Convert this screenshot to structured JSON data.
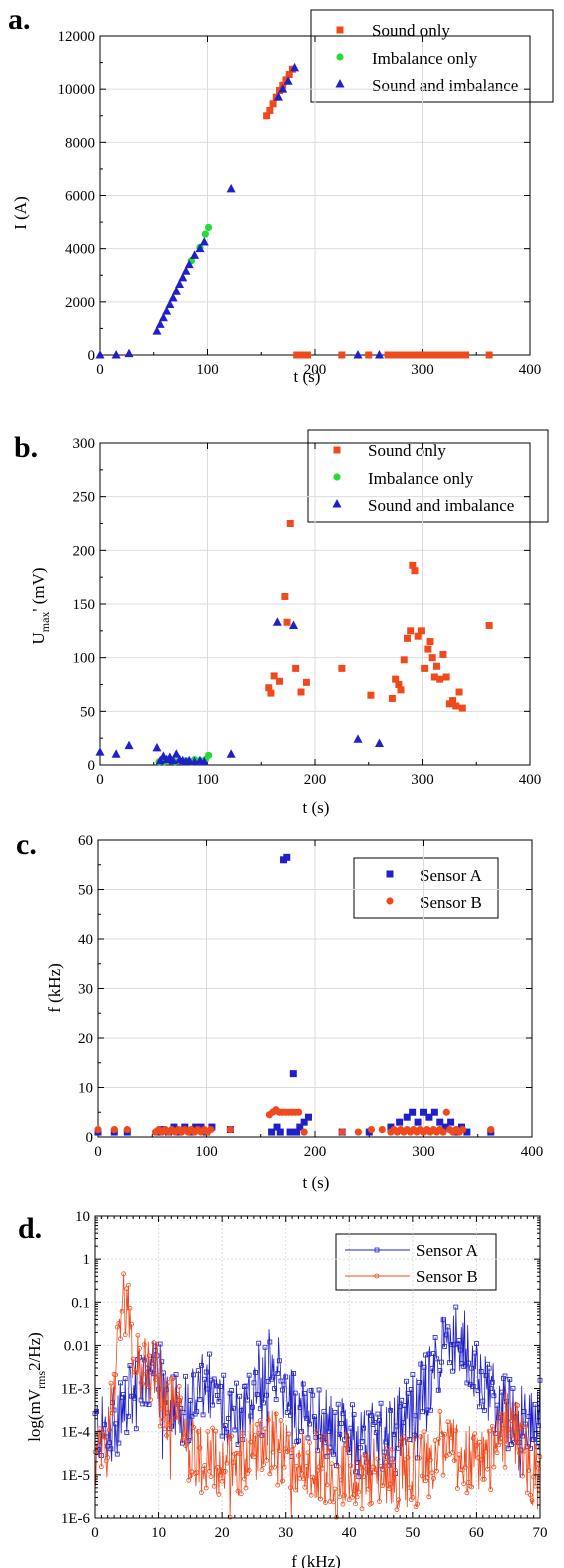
{
  "colors": {
    "orange": "#f04a1c",
    "green": "#22dd33",
    "blue": "#2020c8",
    "grid": "#dcdcdc"
  },
  "chart_data": [
    {
      "id": "a",
      "type": "scatter",
      "panel_label": "a.",
      "xlabel": "t (s)",
      "ylabel": "I (A)",
      "xlim": [
        0,
        400
      ],
      "ylim": [
        0,
        12000
      ],
      "xticks": [
        0,
        100,
        200,
        300,
        400
      ],
      "yticks": [
        0,
        2000,
        4000,
        6000,
        8000,
        10000,
        12000
      ],
      "grid": true,
      "legend_position": "top-right",
      "series": [
        {
          "name": "Sound only",
          "marker": "square",
          "color": "#f04a1c",
          "points": [
            [
              155,
              9000
            ],
            [
              158,
              9200
            ],
            [
              161,
              9450
            ],
            [
              164,
              9700
            ],
            [
              167,
              9950
            ],
            [
              170,
              10150
            ],
            [
              173,
              10350
            ],
            [
              176,
              10550
            ],
            [
              179,
              10750
            ],
            [
              183,
              0
            ],
            [
              186,
              0
            ],
            [
              189,
              0
            ],
            [
              193,
              0
            ],
            [
              225,
              0
            ],
            [
              250,
              0
            ],
            [
              268,
              0
            ],
            [
              272,
              0
            ],
            [
              276,
              0
            ],
            [
              280,
              0
            ],
            [
              284,
              0
            ],
            [
              288,
              0
            ],
            [
              292,
              0
            ],
            [
              296,
              0
            ],
            [
              300,
              0
            ],
            [
              304,
              0
            ],
            [
              308,
              0
            ],
            [
              312,
              0
            ],
            [
              316,
              0
            ],
            [
              320,
              0
            ],
            [
              324,
              0
            ],
            [
              328,
              0
            ],
            [
              332,
              0
            ],
            [
              336,
              0
            ],
            [
              340,
              0
            ],
            [
              362,
              0
            ]
          ]
        },
        {
          "name": "Imbalance only",
          "marker": "circle",
          "color": "#22dd33",
          "points": [
            [
              85,
              3550
            ],
            [
              93,
              4050
            ],
            [
              98,
              4550
            ],
            [
              101,
              4800
            ]
          ]
        },
        {
          "name": "Sound and imbalance",
          "marker": "triangle",
          "color": "#2020c8",
          "points": [
            [
              0,
              0
            ],
            [
              15,
              0
            ],
            [
              27,
              50
            ],
            [
              53,
              900
            ],
            [
              56,
              1150
            ],
            [
              59,
              1400
            ],
            [
              62,
              1650
            ],
            [
              65,
              1900
            ],
            [
              68,
              2150
            ],
            [
              71,
              2400
            ],
            [
              74,
              2650
            ],
            [
              77,
              2900
            ],
            [
              80,
              3150
            ],
            [
              83,
              3400
            ],
            [
              88,
              3750
            ],
            [
              93,
              4000
            ],
            [
              97,
              4250
            ],
            [
              122,
              6250
            ],
            [
              166,
              9700
            ],
            [
              170,
              10000
            ],
            [
              175,
              10300
            ],
            [
              181,
              10800
            ],
            [
              240,
              0
            ],
            [
              260,
              0
            ]
          ]
        }
      ]
    },
    {
      "id": "b",
      "type": "scatter",
      "panel_label": "b.",
      "xlabel": "t (s)",
      "ylabel_main": "U",
      "ylabel_sub": "max",
      "ylabel_rest": "' (mV)",
      "xlim": [
        0,
        400
      ],
      "ylim": [
        0,
        300
      ],
      "xticks": [
        0,
        100,
        200,
        300,
        400
      ],
      "yticks": [
        0,
        50,
        100,
        150,
        200,
        250,
        300
      ],
      "grid": true,
      "legend_position": "top-right",
      "series": [
        {
          "name": "Sound only",
          "marker": "square",
          "color": "#f04a1c",
          "points": [
            [
              157,
              72
            ],
            [
              159,
              67
            ],
            [
              162,
              83
            ],
            [
              167,
              78
            ],
            [
              172,
              157
            ],
            [
              174,
              133
            ],
            [
              177,
              225
            ],
            [
              182,
              90
            ],
            [
              187,
              68
            ],
            [
              192,
              77
            ],
            [
              225,
              90
            ],
            [
              252,
              65
            ],
            [
              272,
              62
            ],
            [
              275,
              80
            ],
            [
              278,
              75
            ],
            [
              280,
              70
            ],
            [
              283,
              98
            ],
            [
              286,
              118
            ],
            [
              289,
              125
            ],
            [
              291,
              186
            ],
            [
              293,
              181
            ],
            [
              296,
              120
            ],
            [
              299,
              125
            ],
            [
              302,
              90
            ],
            [
              305,
              108
            ],
            [
              307,
              115
            ],
            [
              309,
              100
            ],
            [
              311,
              82
            ],
            [
              313,
              92
            ],
            [
              316,
              80
            ],
            [
              319,
              103
            ],
            [
              322,
              82
            ],
            [
              325,
              57
            ],
            [
              328,
              60
            ],
            [
              331,
              55
            ],
            [
              334,
              68
            ],
            [
              337,
              53
            ],
            [
              362,
              130
            ]
          ]
        },
        {
          "name": "Imbalance only",
          "marker": "circle",
          "color": "#22dd33",
          "points": [
            [
              55,
              3
            ],
            [
              60,
              3
            ],
            [
              65,
              4
            ],
            [
              70,
              3
            ],
            [
              80,
              4
            ],
            [
              85,
              3
            ],
            [
              88,
              5
            ],
            [
              93,
              4
            ],
            [
              98,
              5
            ],
            [
              101,
              9
            ]
          ]
        },
        {
          "name": "Sound and imbalance",
          "marker": "triangle",
          "color": "#2020c8",
          "points": [
            [
              0,
              12
            ],
            [
              15,
              10
            ],
            [
              27,
              18
            ],
            [
              53,
              16
            ],
            [
              56,
              4
            ],
            [
              59,
              8
            ],
            [
              62,
              5
            ],
            [
              65,
              7
            ],
            [
              68,
              4
            ],
            [
              71,
              10
            ],
            [
              74,
              5
            ],
            [
              77,
              4
            ],
            [
              80,
              3
            ],
            [
              83,
              4
            ],
            [
              88,
              3
            ],
            [
              93,
              4
            ],
            [
              97,
              3
            ],
            [
              122,
              10
            ],
            [
              165,
              133
            ],
            [
              180,
              130
            ],
            [
              240,
              24
            ],
            [
              260,
              20
            ]
          ]
        }
      ]
    },
    {
      "id": "c",
      "type": "scatter",
      "panel_label": "c.",
      "xlabel": "t (s)",
      "ylabel": "f (kHz)",
      "xlim": [
        0,
        400
      ],
      "ylim": [
        0,
        60
      ],
      "xticks": [
        0,
        100,
        200,
        300,
        400
      ],
      "yticks": [
        0,
        10,
        20,
        30,
        40,
        50,
        60
      ],
      "grid": true,
      "legend_position": "top-right",
      "series": [
        {
          "name": "Sensor A",
          "marker": "square",
          "color": "#2020c8",
          "points": [
            [
              0,
              1
            ],
            [
              15,
              1
            ],
            [
              27,
              1
            ],
            [
              55,
              1
            ],
            [
              60,
              1.5
            ],
            [
              65,
              1
            ],
            [
              70,
              2
            ],
            [
              75,
              1
            ],
            [
              80,
              2
            ],
            [
              85,
              1
            ],
            [
              90,
              2
            ],
            [
              95,
              2
            ],
            [
              100,
              1
            ],
            [
              105,
              2
            ],
            [
              122,
              1.5
            ],
            [
              160,
              1
            ],
            [
              165,
              2
            ],
            [
              168,
              1
            ],
            [
              171,
              56
            ],
            [
              174,
              56.5
            ],
            [
              177,
              1
            ],
            [
              180,
              12.8
            ],
            [
              183,
              1
            ],
            [
              186,
              2
            ],
            [
              190,
              3
            ],
            [
              194,
              4
            ],
            [
              225,
              1
            ],
            [
              250,
              1
            ],
            [
              270,
              2
            ],
            [
              278,
              3
            ],
            [
              285,
              4
            ],
            [
              290,
              5
            ],
            [
              295,
              3
            ],
            [
              300,
              5
            ],
            [
              305,
              4
            ],
            [
              310,
              5
            ],
            [
              315,
              3
            ],
            [
              320,
              2
            ],
            [
              325,
              3
            ],
            [
              330,
              1
            ],
            [
              335,
              2
            ],
            [
              340,
              1
            ],
            [
              362,
              1
            ]
          ]
        },
        {
          "name": "Sensor B",
          "marker": "circle",
          "color": "#f04a1c",
          "points": [
            [
              0,
              1.5
            ],
            [
              15,
              1.5
            ],
            [
              27,
              1.5
            ],
            [
              53,
              1
            ],
            [
              56,
              1.5
            ],
            [
              59,
              1
            ],
            [
              62,
              1.5
            ],
            [
              65,
              1
            ],
            [
              68,
              1.5
            ],
            [
              71,
              1
            ],
            [
              74,
              1.5
            ],
            [
              77,
              1
            ],
            [
              80,
              1.5
            ],
            [
              83,
              1
            ],
            [
              86,
              1.5
            ],
            [
              89,
              1
            ],
            [
              92,
              1.5
            ],
            [
              95,
              1
            ],
            [
              98,
              1.5
            ],
            [
              101,
              1
            ],
            [
              104,
              1.5
            ],
            [
              122,
              1.5
            ],
            [
              158,
              4.5
            ],
            [
              161,
              5
            ],
            [
              164,
              5.5
            ],
            [
              167,
              5
            ],
            [
              170,
              5
            ],
            [
              173,
              5
            ],
            [
              176,
              5
            ],
            [
              179,
              5
            ],
            [
              182,
              5
            ],
            [
              185,
              5
            ],
            [
              190,
              1
            ],
            [
              225,
              1
            ],
            [
              240,
              1
            ],
            [
              252,
              1.5
            ],
            [
              262,
              1.5
            ],
            [
              270,
              1
            ],
            [
              273,
              1.5
            ],
            [
              276,
              1
            ],
            [
              279,
              1.5
            ],
            [
              282,
              1
            ],
            [
              285,
              1.5
            ],
            [
              288,
              1
            ],
            [
              291,
              1.5
            ],
            [
              294,
              1
            ],
            [
              297,
              1.5
            ],
            [
              300,
              1
            ],
            [
              303,
              1.5
            ],
            [
              306,
              1
            ],
            [
              309,
              1.5
            ],
            [
              312,
              1
            ],
            [
              315,
              1.5
            ],
            [
              318,
              1
            ],
            [
              321,
              5
            ],
            [
              324,
              1.5
            ],
            [
              327,
              1
            ],
            [
              330,
              1.5
            ],
            [
              333,
              1
            ],
            [
              336,
              1.5
            ],
            [
              362,
              1.5
            ]
          ]
        }
      ]
    },
    {
      "id": "d",
      "type": "line",
      "panel_label": "d.",
      "xlabel": "f (kHz)",
      "ylabel": "log(mV",
      "ylabel_sub": "rms",
      "ylabel_rest": "2/Hz)",
      "xlim": [
        0,
        70
      ],
      "ylim_log": [
        -6,
        1
      ],
      "xticks": [
        0,
        10,
        20,
        30,
        40,
        50,
        60,
        70
      ],
      "yticks": [
        "1E-6",
        "1E-5",
        "1E-4",
        "1E-3",
        "0.01",
        "0.1",
        "1",
        "10"
      ],
      "grid": true,
      "legend_position": "top-right",
      "series": [
        {
          "name": "Sensor A",
          "color": "#2020c8",
          "marker": "open-square"
        },
        {
          "name": "Sensor B",
          "color": "#f04a1c",
          "marker": "open-circle"
        }
      ]
    }
  ]
}
